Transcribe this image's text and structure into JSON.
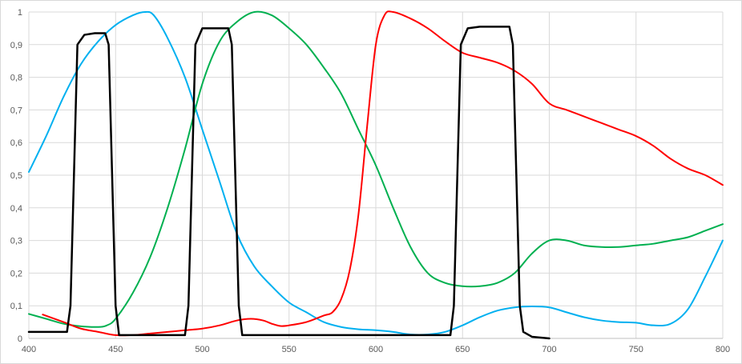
{
  "chart_data": {
    "type": "line",
    "title": "",
    "xlabel": "",
    "ylabel": "",
    "xlim": [
      400,
      800
    ],
    "ylim": [
      0,
      1
    ],
    "grid": true,
    "legend": "none",
    "x_ticks": [
      {
        "value": 400,
        "label": "400"
      },
      {
        "value": 450,
        "label": "450"
      },
      {
        "value": 500,
        "label": "500"
      },
      {
        "value": 550,
        "label": "550"
      },
      {
        "value": 600,
        "label": "600"
      },
      {
        "value": 650,
        "label": "650"
      },
      {
        "value": 700,
        "label": "700"
      },
      {
        "value": 750,
        "label": "750"
      },
      {
        "value": 800,
        "label": "800"
      }
    ],
    "y_ticks": [
      {
        "value": 0,
        "label": "0"
      },
      {
        "value": 0.1,
        "label": "0,1"
      },
      {
        "value": 0.2,
        "label": "0,2"
      },
      {
        "value": 0.3,
        "label": "0,3"
      },
      {
        "value": 0.4,
        "label": "0,4"
      },
      {
        "value": 0.5,
        "label": "0,5"
      },
      {
        "value": 0.6,
        "label": "0,6"
      },
      {
        "value": 0.7,
        "label": "0,7"
      },
      {
        "value": 0.8,
        "label": "0,8"
      },
      {
        "value": 0.9,
        "label": "0,9"
      },
      {
        "value": 1,
        "label": "1"
      }
    ],
    "series": [
      {
        "color": "#00b0f0",
        "points": [
          [
            400,
            0.51
          ],
          [
            410,
            0.62
          ],
          [
            420,
            0.74
          ],
          [
            430,
            0.84
          ],
          [
            440,
            0.91
          ],
          [
            450,
            0.96
          ],
          [
            460,
            0.99
          ],
          [
            467,
            1.0
          ],
          [
            472,
            0.99
          ],
          [
            480,
            0.92
          ],
          [
            490,
            0.8
          ],
          [
            500,
            0.64
          ],
          [
            510,
            0.48
          ],
          [
            520,
            0.32
          ],
          [
            530,
            0.22
          ],
          [
            540,
            0.16
          ],
          [
            550,
            0.11
          ],
          [
            560,
            0.08
          ],
          [
            570,
            0.05
          ],
          [
            580,
            0.035
          ],
          [
            590,
            0.028
          ],
          [
            600,
            0.025
          ],
          [
            610,
            0.02
          ],
          [
            620,
            0.012
          ],
          [
            630,
            0.012
          ],
          [
            640,
            0.02
          ],
          [
            650,
            0.04
          ],
          [
            660,
            0.065
          ],
          [
            670,
            0.085
          ],
          [
            680,
            0.095
          ],
          [
            690,
            0.098
          ],
          [
            700,
            0.095
          ],
          [
            710,
            0.08
          ],
          [
            720,
            0.065
          ],
          [
            730,
            0.055
          ],
          [
            740,
            0.05
          ],
          [
            750,
            0.048
          ],
          [
            760,
            0.04
          ],
          [
            770,
            0.045
          ],
          [
            780,
            0.09
          ],
          [
            790,
            0.19
          ],
          [
            800,
            0.3
          ]
        ]
      },
      {
        "color": "#00b050",
        "points": [
          [
            400,
            0.075
          ],
          [
            410,
            0.06
          ],
          [
            420,
            0.045
          ],
          [
            430,
            0.037
          ],
          [
            440,
            0.035
          ],
          [
            445,
            0.04
          ],
          [
            450,
            0.06
          ],
          [
            460,
            0.14
          ],
          [
            470,
            0.25
          ],
          [
            480,
            0.4
          ],
          [
            490,
            0.58
          ],
          [
            500,
            0.78
          ],
          [
            510,
            0.91
          ],
          [
            520,
            0.97
          ],
          [
            530,
            1.0
          ],
          [
            540,
            0.99
          ],
          [
            550,
            0.95
          ],
          [
            560,
            0.9
          ],
          [
            570,
            0.83
          ],
          [
            580,
            0.75
          ],
          [
            590,
            0.64
          ],
          [
            600,
            0.53
          ],
          [
            610,
            0.4
          ],
          [
            620,
            0.28
          ],
          [
            630,
            0.2
          ],
          [
            640,
            0.17
          ],
          [
            650,
            0.16
          ],
          [
            660,
            0.16
          ],
          [
            670,
            0.17
          ],
          [
            680,
            0.2
          ],
          [
            690,
            0.26
          ],
          [
            700,
            0.3
          ],
          [
            710,
            0.3
          ],
          [
            720,
            0.285
          ],
          [
            730,
            0.28
          ],
          [
            740,
            0.28
          ],
          [
            750,
            0.285
          ],
          [
            760,
            0.29
          ],
          [
            770,
            0.3
          ],
          [
            780,
            0.31
          ],
          [
            790,
            0.33
          ],
          [
            800,
            0.35
          ]
        ]
      },
      {
        "color": "#ff0000",
        "points": [
          [
            408,
            0.073
          ],
          [
            420,
            0.05
          ],
          [
            430,
            0.03
          ],
          [
            440,
            0.02
          ],
          [
            450,
            0.01
          ],
          [
            460,
            0.01
          ],
          [
            470,
            0.015
          ],
          [
            480,
            0.02
          ],
          [
            490,
            0.025
          ],
          [
            500,
            0.03
          ],
          [
            510,
            0.04
          ],
          [
            520,
            0.055
          ],
          [
            528,
            0.06
          ],
          [
            535,
            0.055
          ],
          [
            540,
            0.045
          ],
          [
            545,
            0.038
          ],
          [
            550,
            0.04
          ],
          [
            560,
            0.05
          ],
          [
            570,
            0.07
          ],
          [
            575,
            0.08
          ],
          [
            580,
            0.12
          ],
          [
            585,
            0.21
          ],
          [
            590,
            0.38
          ],
          [
            595,
            0.65
          ],
          [
            600,
            0.9
          ],
          [
            605,
            0.99
          ],
          [
            610,
            1.0
          ],
          [
            620,
            0.98
          ],
          [
            630,
            0.95
          ],
          [
            640,
            0.91
          ],
          [
            650,
            0.875
          ],
          [
            660,
            0.86
          ],
          [
            670,
            0.845
          ],
          [
            680,
            0.82
          ],
          [
            690,
            0.78
          ],
          [
            700,
            0.72
          ],
          [
            710,
            0.7
          ],
          [
            720,
            0.68
          ],
          [
            730,
            0.66
          ],
          [
            740,
            0.64
          ],
          [
            750,
            0.62
          ],
          [
            760,
            0.59
          ],
          [
            770,
            0.55
          ],
          [
            780,
            0.52
          ],
          [
            790,
            0.5
          ],
          [
            800,
            0.47
          ]
        ]
      },
      {
        "color": "#000000",
        "points": [
          [
            400,
            0.02
          ],
          [
            422,
            0.02
          ],
          [
            424,
            0.1
          ],
          [
            426,
            0.5
          ],
          [
            428,
            0.9
          ],
          [
            432,
            0.93
          ],
          [
            438,
            0.935
          ],
          [
            444,
            0.935
          ],
          [
            446,
            0.9
          ],
          [
            448,
            0.5
          ],
          [
            450,
            0.1
          ],
          [
            452,
            0.01
          ],
          [
            490,
            0.01
          ],
          [
            492,
            0.1
          ],
          [
            494,
            0.5
          ],
          [
            496,
            0.9
          ],
          [
            500,
            0.95
          ],
          [
            505,
            0.95
          ],
          [
            515,
            0.95
          ],
          [
            517,
            0.9
          ],
          [
            519,
            0.5
          ],
          [
            521,
            0.1
          ],
          [
            523,
            0.01
          ],
          [
            643,
            0.01
          ],
          [
            645,
            0.1
          ],
          [
            647,
            0.5
          ],
          [
            649,
            0.9
          ],
          [
            653,
            0.95
          ],
          [
            660,
            0.955
          ],
          [
            677,
            0.955
          ],
          [
            679,
            0.9
          ],
          [
            681,
            0.5
          ],
          [
            683,
            0.1
          ],
          [
            685,
            0.02
          ],
          [
            690,
            0.005
          ],
          [
            700,
            0.0
          ]
        ]
      }
    ]
  }
}
